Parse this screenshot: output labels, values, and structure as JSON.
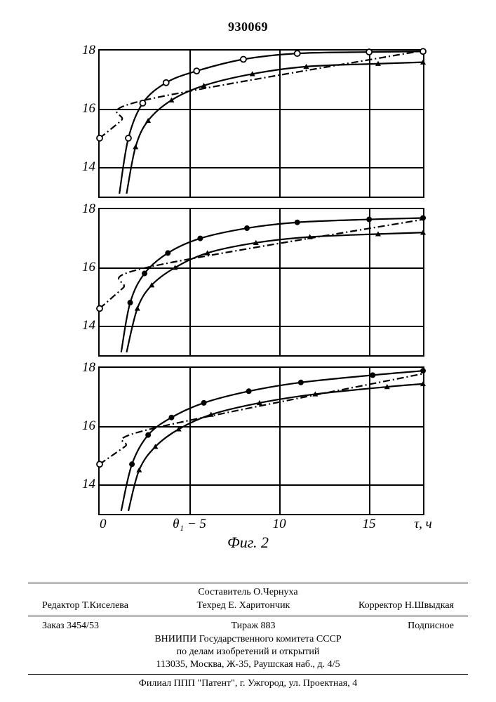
{
  "doc_number": "930069",
  "figure_caption": "Фиг. 2",
  "geometry": {
    "plot_width_units": 18,
    "y_min": 13,
    "y_max": 18,
    "x_gridlines_units": [
      5,
      10,
      15
    ],
    "y_major_ticks": [
      14,
      16,
      18
    ],
    "stroke_width": 2.2,
    "dashdot_pattern": "10 4 2 4",
    "marker_radius": 4
  },
  "x_axis": {
    "ticks": [
      "0",
      "θ₁ − 5",
      "10",
      "15",
      "τ, ч"
    ]
  },
  "common_colors": {
    "line": "#000000",
    "background": "#ffffff"
  },
  "panels": [
    {
      "name": "panel-top",
      "dashdot": [
        [
          0,
          15.0
        ],
        [
          1.2,
          15.6
        ],
        [
          2.5,
          16.3
        ],
        [
          18,
          18.0
        ]
      ],
      "series": [
        {
          "name": "series-circles",
          "marker": "circle-open",
          "points": [
            [
              1.1,
              13.1
            ],
            [
              1.6,
              15.0
            ],
            [
              2.4,
              16.2
            ],
            [
              3.7,
              16.9
            ],
            [
              5.4,
              17.3
            ],
            [
              8.0,
              17.7
            ],
            [
              11.0,
              17.9
            ],
            [
              15.0,
              17.95
            ],
            [
              18.0,
              17.97
            ]
          ]
        },
        {
          "name": "series-triangles",
          "marker": "triangle-solid",
          "points": [
            [
              1.5,
              13.1
            ],
            [
              2.0,
              14.7
            ],
            [
              2.7,
              15.6
            ],
            [
              4.0,
              16.3
            ],
            [
              5.8,
              16.8
            ],
            [
              8.5,
              17.2
            ],
            [
              11.5,
              17.45
            ],
            [
              15.5,
              17.55
            ],
            [
              18.0,
              17.6
            ]
          ]
        }
      ]
    },
    {
      "name": "panel-middle",
      "dashdot": [
        [
          0,
          14.6
        ],
        [
          1.3,
          15.3
        ],
        [
          2.6,
          16.0
        ],
        [
          18,
          17.65
        ]
      ],
      "series": [
        {
          "name": "series-circles",
          "marker": "circle-solid",
          "points": [
            [
              1.2,
              13.1
            ],
            [
              1.7,
              14.8
            ],
            [
              2.5,
              15.8
            ],
            [
              3.8,
              16.5
            ],
            [
              5.6,
              17.0
            ],
            [
              8.2,
              17.35
            ],
            [
              11.0,
              17.55
            ],
            [
              15.0,
              17.65
            ],
            [
              18.0,
              17.7
            ]
          ]
        },
        {
          "name": "series-triangles",
          "marker": "triangle-solid",
          "points": [
            [
              1.5,
              13.1
            ],
            [
              2.1,
              14.6
            ],
            [
              2.9,
              15.4
            ],
            [
              4.2,
              16.0
            ],
            [
              6.0,
              16.5
            ],
            [
              8.7,
              16.85
            ],
            [
              11.7,
              17.05
            ],
            [
              15.5,
              17.15
            ],
            [
              18.0,
              17.2
            ]
          ]
        }
      ]
    },
    {
      "name": "panel-bottom",
      "dashdot": [
        [
          0,
          14.7
        ],
        [
          1.4,
          15.3
        ],
        [
          2.8,
          15.9
        ],
        [
          18,
          17.8
        ]
      ],
      "series": [
        {
          "name": "series-circles",
          "marker": "circle-solid",
          "points": [
            [
              1.2,
              13.1
            ],
            [
              1.8,
              14.7
            ],
            [
              2.7,
              15.7
            ],
            [
              4.0,
              16.3
            ],
            [
              5.8,
              16.8
            ],
            [
              8.3,
              17.2
            ],
            [
              11.2,
              17.5
            ],
            [
              15.2,
              17.75
            ],
            [
              18.0,
              17.9
            ]
          ]
        },
        {
          "name": "series-triangles",
          "marker": "triangle-solid",
          "points": [
            [
              1.6,
              13.1
            ],
            [
              2.2,
              14.5
            ],
            [
              3.1,
              15.3
            ],
            [
              4.4,
              15.9
            ],
            [
              6.2,
              16.4
            ],
            [
              8.9,
              16.8
            ],
            [
              12.0,
              17.1
            ],
            [
              16.0,
              17.35
            ],
            [
              18.0,
              17.45
            ]
          ]
        }
      ]
    }
  ],
  "footer": {
    "compiler": "Составитель О.Чернуха",
    "editor": "Редактор Т.Киселева",
    "techred": "Техред Е. Харитончик",
    "corrector": "Корректор Н.Швыдкая",
    "order": "Заказ 3454/53",
    "tirage": "Тираж 883",
    "subscription": "Подписное",
    "org1": "ВНИИПИ Государственного комитета СССР",
    "org2": "по делам изобретений и открытий",
    "address1": "113035, Москва, Ж-35, Раушская наб., д. 4/5",
    "address2": "Филиал ППП \"Патент\", г. Ужгород, ул. Проектная, 4"
  }
}
